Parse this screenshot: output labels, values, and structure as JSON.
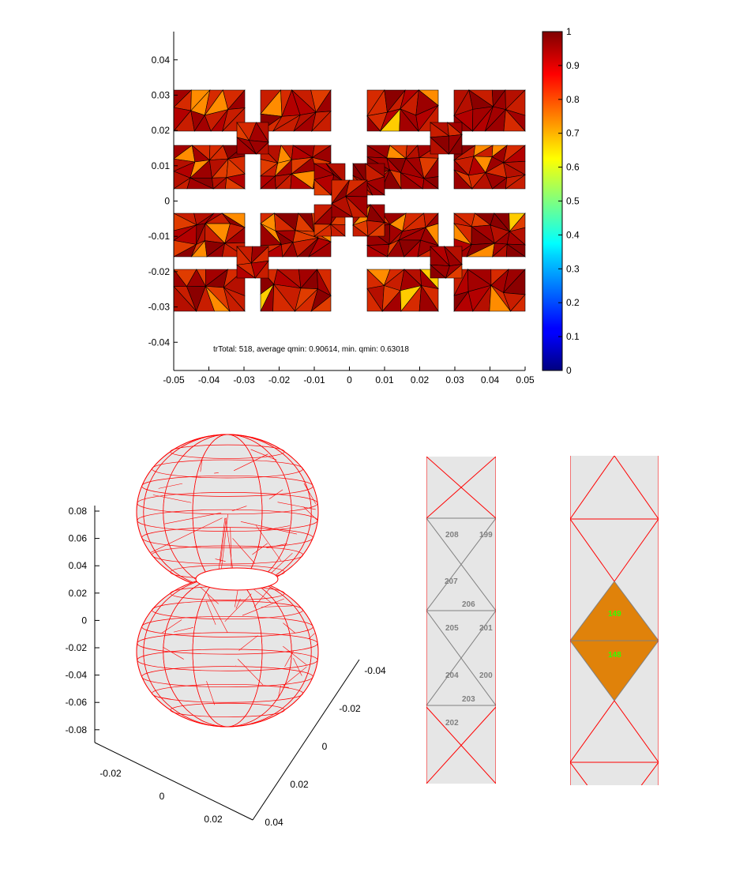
{
  "chart_data": [
    {
      "type": "heatmap",
      "annotation": "trTotal: 518, average qmin: 0.90614, min. qmin: 0.63018",
      "xlim": [
        -0.05,
        0.05
      ],
      "ylim": [
        -0.048,
        0.048
      ],
      "x_ticks": [
        "-0.05",
        "-0.04",
        "-0.03",
        "-0.02",
        "-0.01",
        "0",
        "0.01",
        "0.02",
        "0.03",
        "0.04",
        "0.05"
      ],
      "y_ticks": [
        "0.04",
        "0.03",
        "0.02",
        "0.01",
        "0",
        "-0.01",
        "-0.02",
        "-0.03",
        "-0.04"
      ],
      "colorbar": {
        "range": [
          0,
          1
        ],
        "ticks": [
          "1",
          "0.9",
          "0.8",
          "0.7",
          "0.6",
          "0.5",
          "0.4",
          "0.3",
          "0.2",
          "0.1",
          "0"
        ],
        "colormap": "jet"
      },
      "total_triangles": 518,
      "average_qmin": 0.90614,
      "min_qmin": 0.63018
    },
    {
      "type": "scatter",
      "subtype": "3d-mesh",
      "z_ticks": [
        "0.08",
        "0.06",
        "0.04",
        "0.02",
        "0",
        "-0.02",
        "-0.04",
        "-0.06",
        "-0.08"
      ],
      "x_ticks": [
        "-0.02",
        "0",
        "0.02"
      ],
      "y_ticks": [
        "-0.04",
        "-0.02",
        "0",
        "0.02",
        "0.04"
      ],
      "mesh_color": "#ff0000",
      "face_color": "#e6e6e6"
    },
    {
      "type": "table",
      "subtype": "triangle-strip",
      "triangle_labels": [
        "208",
        "199",
        "207",
        "206",
        "205",
        "201",
        "204",
        "200",
        "203",
        "202"
      ]
    },
    {
      "type": "table",
      "subtype": "triangle-strip-highlight",
      "highlighted_labels": [
        "149",
        "148"
      ],
      "highlight_color": "#e0820a",
      "label_color": "#33ff00"
    }
  ]
}
